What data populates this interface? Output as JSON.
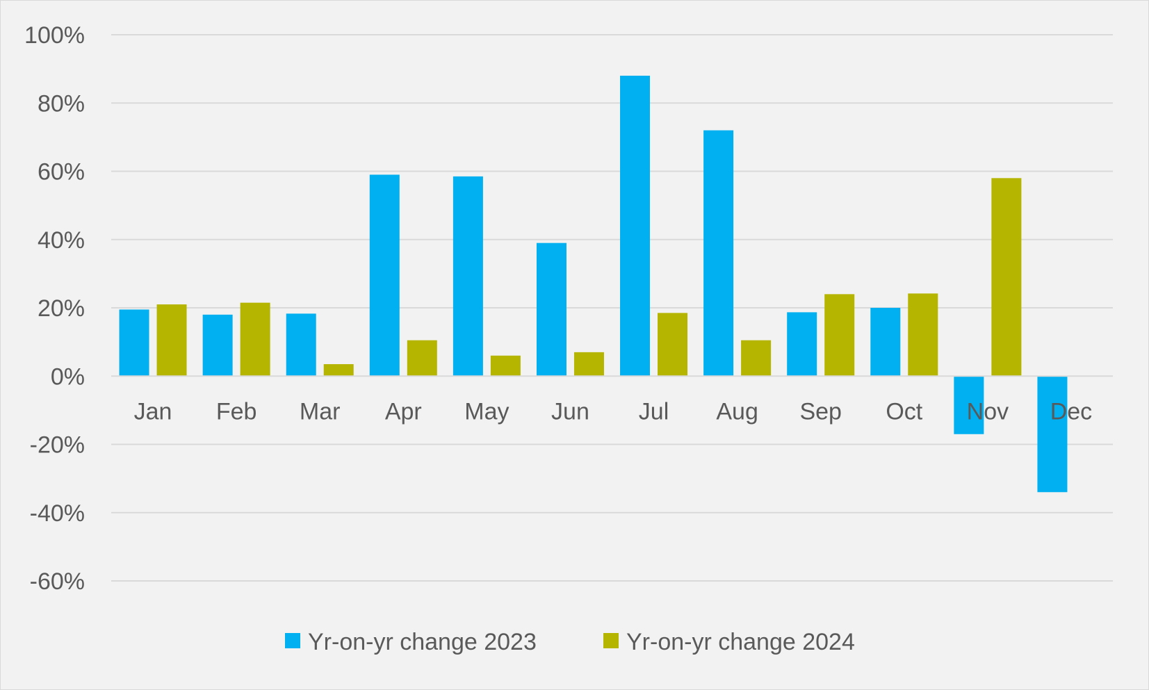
{
  "chart_data": {
    "type": "bar",
    "title": "",
    "xlabel": "",
    "ylabel": "",
    "categories": [
      "Jan",
      "Feb",
      "Mar",
      "Apr",
      "May",
      "Jun",
      "Jul",
      "Aug",
      "Sep",
      "Oct",
      "Nov",
      "Dec"
    ],
    "series": [
      {
        "name": "Yr-on-yr change 2023",
        "color": "#00b0f0",
        "values": [
          19.5,
          18,
          18.3,
          59,
          58.5,
          39,
          88,
          72,
          18.7,
          20,
          -17,
          -34
        ]
      },
      {
        "name": "Yr-on-yr change 2024",
        "color": "#b5b500",
        "values": [
          21,
          21.5,
          3.5,
          10.5,
          6,
          7,
          18.5,
          10.5,
          24,
          24.2,
          58,
          null
        ]
      }
    ],
    "ylim": [
      -60,
      100
    ],
    "yticks": [
      100,
      80,
      60,
      40,
      20,
      0,
      -20,
      -40,
      -60
    ],
    "ytick_labels": [
      "100%",
      "80%",
      "60%",
      "40%",
      "20%",
      "0%",
      "-20%",
      "-40%",
      "-60%"
    ],
    "grid": true,
    "legend_position": "bottom"
  }
}
